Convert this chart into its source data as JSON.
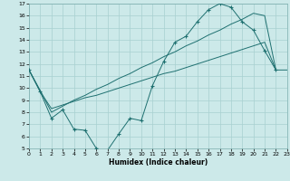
{
  "xlabel": "Humidex (Indice chaleur)",
  "xlim": [
    0,
    23
  ],
  "ylim": [
    5,
    17
  ],
  "xticks": [
    0,
    1,
    2,
    3,
    4,
    5,
    6,
    7,
    8,
    9,
    10,
    11,
    12,
    13,
    14,
    15,
    16,
    17,
    18,
    19,
    20,
    21,
    22,
    23
  ],
  "yticks": [
    5,
    6,
    7,
    8,
    9,
    10,
    11,
    12,
    13,
    14,
    15,
    16,
    17
  ],
  "bg_color": "#cce9e9",
  "grid_color": "#a8d0d0",
  "line_color": "#1e7070",
  "wavy_x": [
    0,
    1,
    2,
    3,
    4,
    5,
    6,
    7,
    8,
    9,
    10,
    11,
    12,
    13,
    14,
    15,
    16,
    17,
    18,
    19,
    20,
    21,
    22
  ],
  "wavy_y": [
    11.5,
    9.7,
    7.5,
    8.2,
    6.6,
    6.5,
    5.0,
    4.85,
    6.2,
    7.5,
    7.3,
    10.2,
    12.2,
    13.8,
    14.3,
    15.5,
    16.5,
    17.0,
    16.7,
    15.5,
    14.8,
    13.1,
    11.5
  ],
  "lower_x": [
    0,
    1,
    2,
    3,
    4,
    5,
    6,
    7,
    8,
    9,
    10,
    11,
    12,
    13,
    14,
    15,
    16,
    17,
    18,
    19,
    20,
    21,
    22,
    23
  ],
  "lower_y": [
    11.5,
    9.7,
    8.3,
    8.6,
    8.9,
    9.2,
    9.4,
    9.7,
    10.0,
    10.3,
    10.6,
    10.9,
    11.2,
    11.4,
    11.7,
    12.0,
    12.3,
    12.6,
    12.9,
    13.2,
    13.5,
    13.8,
    11.5,
    11.5
  ],
  "upper_x": [
    0,
    1,
    2,
    3,
    4,
    5,
    6,
    7,
    8,
    9,
    10,
    11,
    12,
    13,
    14,
    15,
    16,
    17,
    18,
    19,
    20,
    21,
    22
  ],
  "upper_y": [
    11.5,
    9.8,
    8.0,
    8.5,
    9.0,
    9.4,
    9.9,
    10.3,
    10.8,
    11.2,
    11.7,
    12.1,
    12.6,
    13.0,
    13.5,
    13.9,
    14.4,
    14.8,
    15.3,
    15.7,
    16.2,
    16.0,
    11.5
  ]
}
